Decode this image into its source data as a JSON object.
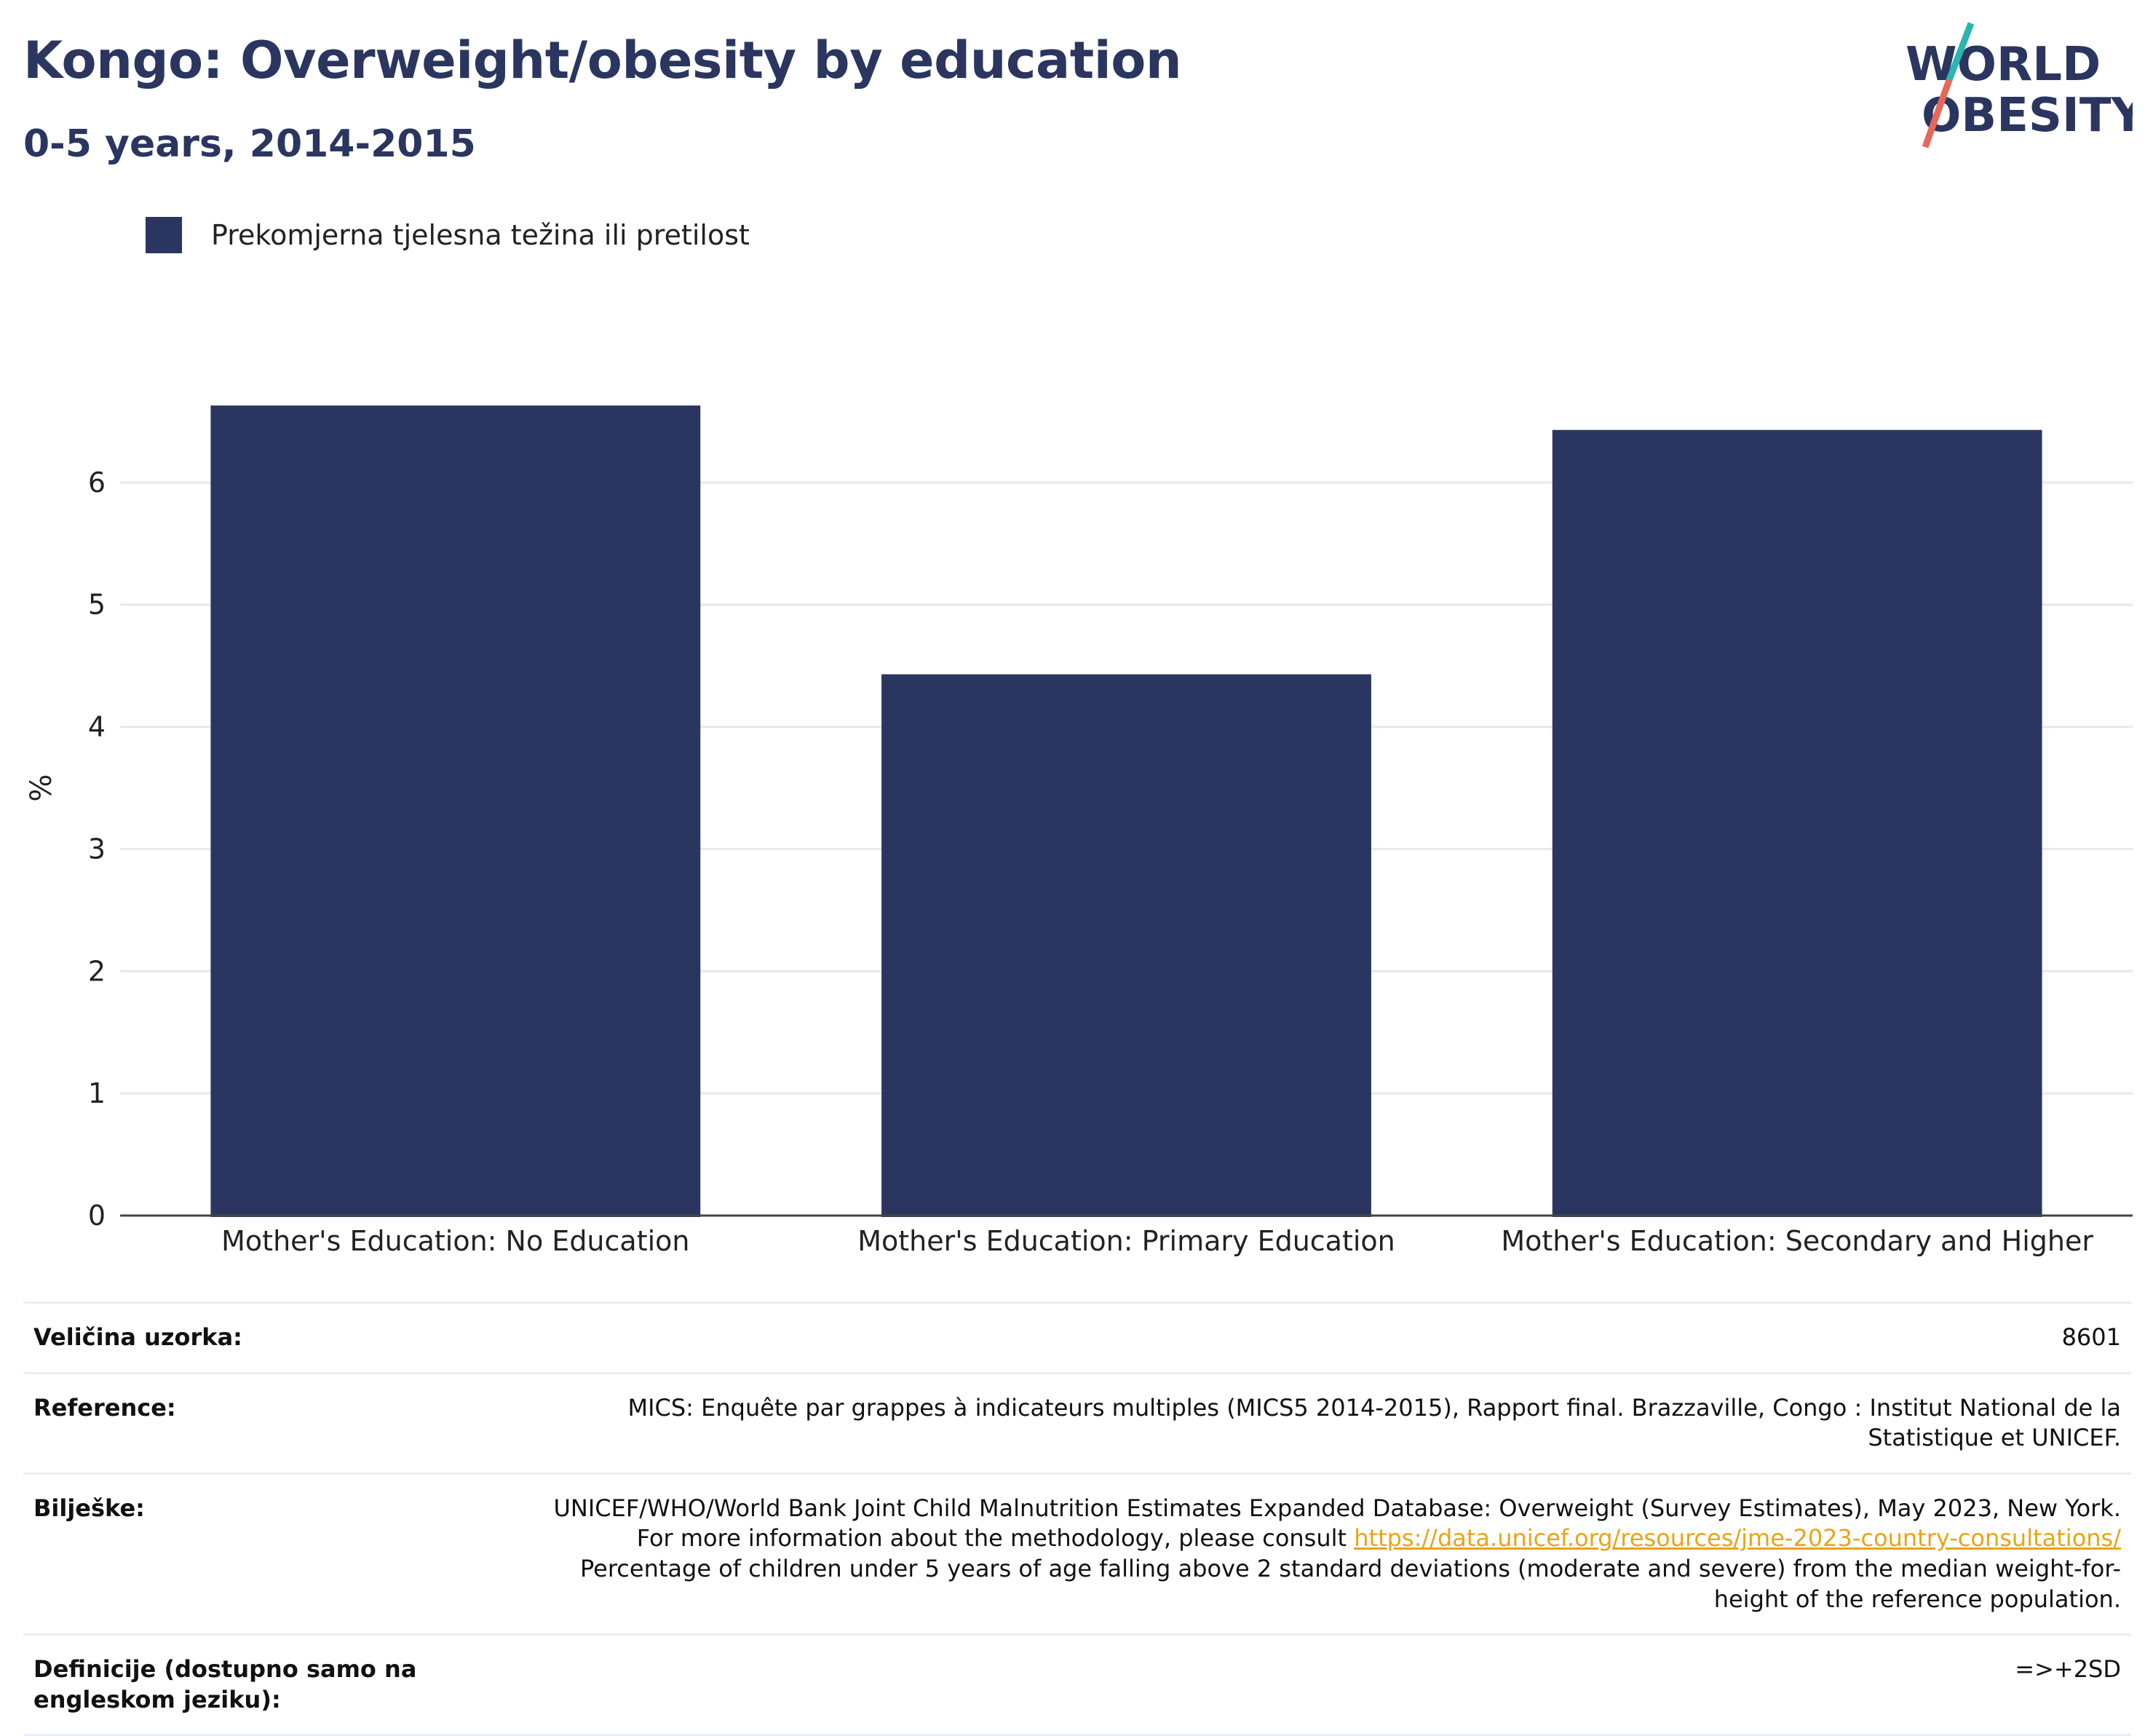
{
  "header": {
    "title": "Kongo: Overweight/obesity by education",
    "subtitle": "0-5 years, 2014-2015"
  },
  "logo": {
    "line1": "WORLD",
    "line2": "OBESITY"
  },
  "colors": {
    "bar": "#2a3660",
    "title": "#2a3660",
    "link": "#e8a514",
    "gridline": "#e8e8ee"
  },
  "chart_data": {
    "type": "bar",
    "categories": [
      "Mother's Education: No Education",
      "Mother's Education: Primary Education",
      "Mother's Education: Secondary and Higher"
    ],
    "series": [
      {
        "name": "Prekomjerna tjelesna težina ili pretilost",
        "values": [
          6.63,
          4.43,
          6.43
        ]
      }
    ],
    "ylabel": "%",
    "ylim": [
      0,
      7
    ],
    "yticks": [
      0,
      1,
      2,
      3,
      4,
      5,
      6
    ],
    "grid": true,
    "legend_position": "top-left"
  },
  "meta": [
    {
      "key": "Veličina uzorka:",
      "value": "8601"
    },
    {
      "key": "Reference:",
      "value": "MICS: Enquête par grappes à indicateurs multiples (MICS5 2014-2015), Rapport final. Brazzaville, Congo : Institut National de la Statistique et UNICEF."
    },
    {
      "key": "Bilješke:",
      "value_pre": "UNICEF/WHO/World Bank Joint Child Malnutrition Estimates Expanded Database: Overweight (Survey Estimates), May 2023, New York. For more information about the methodology, please consult ",
      "link": "https://data.unicef.org/resources/jme-2023-country-consultations/",
      "value_post": " Percentage of children under 5 years of age falling above 2 standard deviations (moderate and severe) from the median weight-for-height of the reference population."
    },
    {
      "key": "Definicije (dostupno samo na engleskom jeziku):",
      "value": "=>+2SD"
    }
  ]
}
